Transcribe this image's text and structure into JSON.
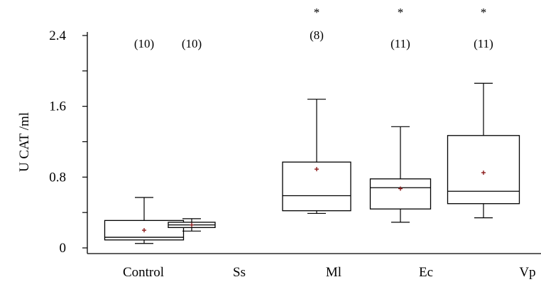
{
  "chart_data": {
    "type": "box",
    "ylabel": "U CAT /ml",
    "xlabel": "",
    "ylim": [
      0,
      2.5
    ],
    "y_ticks": [
      0,
      0.8,
      1.6,
      2.4
    ],
    "y_tick_labels": [
      "0",
      "0.8",
      "1.6",
      "2.4"
    ],
    "categories": [
      "Control",
      "Ss",
      "Ml",
      "Ec",
      "Vp"
    ],
    "sample_sizes": [
      "(10)",
      "(10)",
      "(8)",
      "(11)",
      "(11)"
    ],
    "significance": [
      "",
      "",
      "*",
      "*",
      "*"
    ],
    "boxes": [
      {
        "name": "Control",
        "whisker_low": 0.05,
        "q1": 0.09,
        "median": 0.12,
        "q3": 0.31,
        "whisker_high": 0.57,
        "mean": 0.2
      },
      {
        "name": "Ss",
        "whisker_low": 0.19,
        "q1": 0.23,
        "median": 0.26,
        "q3": 0.29,
        "whisker_high": 0.33,
        "mean": 0.26
      },
      {
        "name": "Ml",
        "whisker_low": 0.39,
        "q1": 0.42,
        "median": 0.59,
        "q3": 0.97,
        "whisker_high": 1.68,
        "mean": 0.89
      },
      {
        "name": "Ec",
        "whisker_low": 0.29,
        "q1": 0.44,
        "median": 0.68,
        "q3": 0.78,
        "whisker_high": 1.37,
        "mean": 0.67
      },
      {
        "name": "Vp",
        "whisker_low": 0.34,
        "q1": 0.5,
        "median": 0.64,
        "q3": 1.27,
        "whisker_high": 1.86,
        "mean": 0.85
      }
    ],
    "colors": {
      "box": "#000000",
      "mean_marker": "#8b1a1a"
    }
  }
}
